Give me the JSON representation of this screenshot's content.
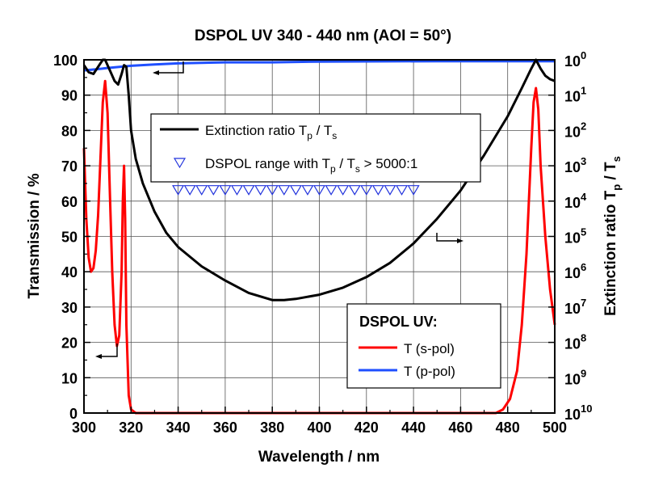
{
  "chart_data": {
    "type": "line",
    "title": "DSPOL UV 340 - 440 nm (AOI = 50°)",
    "xlabel": "Wavelength / nm",
    "ylabel": "Transmission / %",
    "y2label_main": "Extinction ratio T",
    "y2label_sub1": "p",
    "y2label_mid": " / T",
    "y2label_sub2": "s",
    "xlim": [
      300,
      500
    ],
    "ylim": [
      0,
      100
    ],
    "y2lim_exponent": [
      0,
      10
    ],
    "y2_scale": "log, inverted",
    "grid": true,
    "xticks": [
      "300",
      "320",
      "340",
      "360",
      "380",
      "400",
      "420",
      "440",
      "460",
      "480",
      "500"
    ],
    "yticks": [
      "0",
      "10",
      "20",
      "30",
      "40",
      "50",
      "60",
      "70",
      "80",
      "90",
      "100"
    ],
    "y2tick_base": "10",
    "y2tick_exponents": [
      "0",
      "1",
      "2",
      "3",
      "4",
      "5",
      "6",
      "7",
      "8",
      "9",
      "10"
    ],
    "legend1": {
      "placement": "top-center",
      "line_label_main": "Extinction ratio T",
      "line_sub1": "p",
      "line_mid": " / T",
      "line_sub2": "s",
      "marker_label_main": "DSPOL range with T",
      "marker_sub1": "p",
      "marker_mid": " / T",
      "marker_sub2": "s",
      "marker_end": " > 5000:1"
    },
    "legend2": {
      "placement": "bottom-right",
      "title": "DSPOL UV:",
      "entries": [
        "T (s-pol)",
        "T (p-pol)"
      ]
    },
    "colors": {
      "s_pol": "#ff0000",
      "p_pol": "#1f4fff",
      "extinction": "#000000",
      "marker": "#2233dd"
    },
    "series": [
      {
        "name": "T (s-pol)",
        "axis": "left",
        "points": [
          [
            300,
            75
          ],
          [
            301,
            55
          ],
          [
            302,
            44
          ],
          [
            303,
            40
          ],
          [
            304,
            41
          ],
          [
            305,
            46
          ],
          [
            306,
            56
          ],
          [
            307,
            72
          ],
          [
            308,
            88
          ],
          [
            309,
            94
          ],
          [
            310,
            85
          ],
          [
            311,
            62
          ],
          [
            312,
            40
          ],
          [
            313,
            25
          ],
          [
            314,
            19
          ],
          [
            315,
            22
          ],
          [
            316,
            40
          ],
          [
            316.5,
            60
          ],
          [
            317,
            70
          ],
          [
            317.5,
            55
          ],
          [
            318,
            25
          ],
          [
            319,
            5
          ],
          [
            320,
            1
          ],
          [
            322,
            0
          ],
          [
            475,
            0
          ],
          [
            478,
            1
          ],
          [
            481,
            4
          ],
          [
            484,
            12
          ],
          [
            486,
            25
          ],
          [
            488,
            45
          ],
          [
            490,
            75
          ],
          [
            491,
            88
          ],
          [
            492,
            92
          ],
          [
            493,
            86
          ],
          [
            494,
            70
          ],
          [
            496,
            50
          ],
          [
            498,
            35
          ],
          [
            500,
            25
          ]
        ]
      },
      {
        "name": "T (p-pol)",
        "axis": "left",
        "points": [
          [
            300,
            97
          ],
          [
            305,
            97.3
          ],
          [
            310,
            97.7
          ],
          [
            320,
            98.3
          ],
          [
            330,
            98.7
          ],
          [
            340,
            99
          ],
          [
            360,
            99.3
          ],
          [
            380,
            99.3
          ],
          [
            400,
            99.5
          ],
          [
            450,
            99.6
          ],
          [
            500,
            99.6
          ]
        ]
      },
      {
        "name": "Extinction ratio Tp / Ts (log10)",
        "axis": "right",
        "points": [
          [
            300,
            0.15
          ],
          [
            302,
            0.35
          ],
          [
            304,
            0.4
          ],
          [
            306,
            0.2
          ],
          [
            308,
            0
          ],
          [
            309,
            0
          ],
          [
            311,
            0.3
          ],
          [
            313,
            0.6
          ],
          [
            314.5,
            0.7
          ],
          [
            316,
            0.4
          ],
          [
            317,
            0.15
          ],
          [
            318,
            0.2
          ],
          [
            319,
            1.0
          ],
          [
            320,
            2.0
          ],
          [
            322,
            2.8
          ],
          [
            325,
            3.5
          ],
          [
            330,
            4.3
          ],
          [
            335,
            4.9
          ],
          [
            340,
            5.3
          ],
          [
            350,
            5.85
          ],
          [
            360,
            6.25
          ],
          [
            370,
            6.6
          ],
          [
            380,
            6.8
          ],
          [
            385,
            6.8
          ],
          [
            390,
            6.77
          ],
          [
            400,
            6.65
          ],
          [
            410,
            6.45
          ],
          [
            420,
            6.15
          ],
          [
            430,
            5.75
          ],
          [
            440,
            5.2
          ],
          [
            450,
            4.5
          ],
          [
            460,
            3.7
          ],
          [
            470,
            2.7
          ],
          [
            480,
            1.6
          ],
          [
            486,
            0.8
          ],
          [
            490,
            0.25
          ],
          [
            492,
            0
          ],
          [
            494,
            0.25
          ],
          [
            496,
            0.45
          ],
          [
            498,
            0.55
          ],
          [
            500,
            0.6
          ]
        ]
      },
      {
        "name": "DSPOL range with Tp / Ts > 5000:1",
        "axis": "right",
        "type": "scatter",
        "level_exponent": 3.7,
        "x": [
          340,
          345,
          350,
          355,
          360,
          365,
          370,
          375,
          380,
          385,
          390,
          395,
          400,
          405,
          410,
          415,
          420,
          425,
          430,
          435,
          440
        ]
      }
    ]
  }
}
